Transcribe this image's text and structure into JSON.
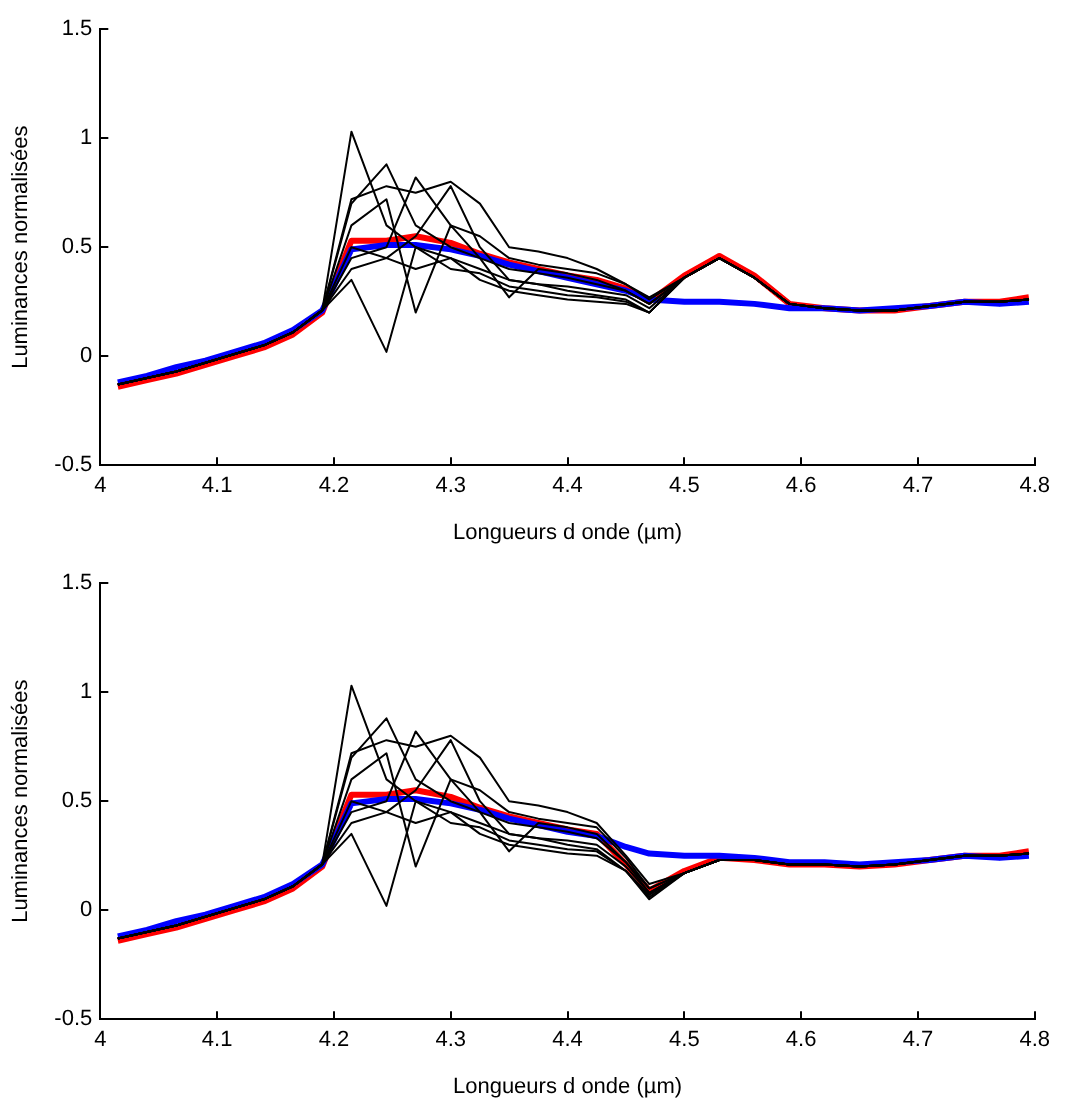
{
  "chart_data": [
    {
      "type": "line",
      "xlabel": "Longueurs d onde (µm)",
      "ylabel": "Luminances normalisées",
      "xlim": [
        4,
        4.8
      ],
      "xticks": [
        4,
        4.1,
        4.2,
        4.3,
        4.4,
        4.5,
        4.6,
        4.7,
        4.8
      ],
      "ylim": [
        -0.5,
        1.5
      ],
      "yticks": [
        -0.5,
        0,
        0.5,
        1,
        1.5
      ],
      "grid": false,
      "legend": false,
      "marker": "none",
      "line_style": "solid",
      "x": [
        4.015,
        4.04,
        4.065,
        4.09,
        4.115,
        4.14,
        4.165,
        4.19,
        4.215,
        4.245,
        4.27,
        4.3,
        4.325,
        4.35,
        4.375,
        4.4,
        4.425,
        4.45,
        4.47,
        4.5,
        4.53,
        4.56,
        4.59,
        4.62,
        4.65,
        4.68,
        4.71,
        4.74,
        4.77,
        4.795
      ],
      "series": [
        {
          "color": "#000000",
          "values": [
            -0.13,
            -0.1,
            -0.07,
            -0.03,
            0.01,
            0.05,
            0.11,
            0.21,
            1.03,
            0.6,
            0.5,
            0.45,
            0.4,
            0.35,
            0.33,
            0.32,
            0.3,
            0.28,
            0.22,
            0.36,
            0.45,
            0.36,
            0.24,
            0.22,
            0.21,
            0.21,
            0.23,
            0.25,
            0.25,
            0.26
          ]
        },
        {
          "color": "#000000",
          "values": [
            -0.13,
            -0.1,
            -0.07,
            -0.03,
            0.01,
            0.05,
            0.11,
            0.21,
            0.35,
            0.02,
            0.5,
            0.4,
            0.38,
            0.32,
            0.3,
            0.28,
            0.27,
            0.25,
            0.2,
            0.36,
            0.45,
            0.36,
            0.24,
            0.22,
            0.21,
            0.21,
            0.23,
            0.25,
            0.25,
            0.26
          ]
        },
        {
          "color": "#000000",
          "values": [
            -0.13,
            -0.1,
            -0.07,
            -0.03,
            0.01,
            0.05,
            0.11,
            0.21,
            0.7,
            0.88,
            0.6,
            0.5,
            0.45,
            0.4,
            0.38,
            0.36,
            0.33,
            0.3,
            0.24,
            0.36,
            0.45,
            0.36,
            0.24,
            0.22,
            0.21,
            0.21,
            0.23,
            0.25,
            0.25,
            0.26
          ]
        },
        {
          "color": "#000000",
          "values": [
            -0.13,
            -0.1,
            -0.07,
            -0.03,
            0.01,
            0.05,
            0.11,
            0.21,
            0.72,
            0.78,
            0.75,
            0.8,
            0.7,
            0.5,
            0.48,
            0.45,
            0.4,
            0.33,
            0.26,
            0.36,
            0.45,
            0.36,
            0.24,
            0.22,
            0.21,
            0.21,
            0.23,
            0.25,
            0.25,
            0.26
          ]
        },
        {
          "color": "#000000",
          "values": [
            -0.13,
            -0.1,
            -0.07,
            -0.03,
            0.01,
            0.05,
            0.11,
            0.21,
            0.45,
            0.5,
            0.82,
            0.6,
            0.55,
            0.45,
            0.42,
            0.4,
            0.38,
            0.33,
            0.27,
            0.36,
            0.45,
            0.36,
            0.24,
            0.22,
            0.21,
            0.21,
            0.23,
            0.25,
            0.25,
            0.26
          ]
        },
        {
          "color": "#000000",
          "values": [
            -0.13,
            -0.1,
            -0.07,
            -0.03,
            0.01,
            0.05,
            0.11,
            0.21,
            0.6,
            0.72,
            0.2,
            0.6,
            0.45,
            0.27,
            0.4,
            0.38,
            0.35,
            0.3,
            0.24,
            0.36,
            0.45,
            0.36,
            0.24,
            0.22,
            0.21,
            0.21,
            0.23,
            0.25,
            0.25,
            0.26
          ]
        },
        {
          "color": "#000000",
          "values": [
            -0.13,
            -0.1,
            -0.07,
            -0.03,
            0.01,
            0.05,
            0.11,
            0.21,
            0.4,
            0.45,
            0.55,
            0.78,
            0.5,
            0.35,
            0.33,
            0.3,
            0.28,
            0.26,
            0.2,
            0.36,
            0.45,
            0.36,
            0.24,
            0.22,
            0.21,
            0.21,
            0.23,
            0.25,
            0.25,
            0.26
          ]
        },
        {
          "color": "#000000",
          "values": [
            -0.13,
            -0.1,
            -0.07,
            -0.03,
            0.01,
            0.05,
            0.11,
            0.21,
            0.5,
            0.45,
            0.4,
            0.45,
            0.35,
            0.3,
            0.28,
            0.26,
            0.25,
            0.24,
            0.2,
            0.36,
            0.45,
            0.36,
            0.24,
            0.22,
            0.21,
            0.21,
            0.23,
            0.25,
            0.25,
            0.26
          ]
        },
        {
          "color": "#0000ff",
          "values": [
            -0.12,
            -0.09,
            -0.05,
            -0.02,
            0.02,
            0.06,
            0.12,
            0.21,
            0.49,
            0.51,
            0.51,
            0.49,
            0.46,
            0.42,
            0.39,
            0.36,
            0.33,
            0.3,
            0.26,
            0.25,
            0.25,
            0.24,
            0.22,
            0.22,
            0.21,
            0.22,
            0.23,
            0.25,
            0.24,
            0.25
          ]
        },
        {
          "color": "#ff0000",
          "values": [
            -0.14,
            -0.11,
            -0.08,
            -0.04,
            0.0,
            0.04,
            0.1,
            0.2,
            0.53,
            0.53,
            0.55,
            0.52,
            0.47,
            0.43,
            0.4,
            0.37,
            0.35,
            0.31,
            0.25,
            0.37,
            0.46,
            0.37,
            0.24,
            0.22,
            0.21,
            0.21,
            0.23,
            0.25,
            0.25,
            0.27
          ]
        }
      ]
    },
    {
      "type": "line",
      "xlabel": "Longueurs d onde (µm)",
      "ylabel": "Luminances normalisées",
      "xlim": [
        4,
        4.8
      ],
      "xticks": [
        4,
        4.1,
        4.2,
        4.3,
        4.4,
        4.5,
        4.6,
        4.7,
        4.8
      ],
      "ylim": [
        -0.5,
        1.5
      ],
      "yticks": [
        -0.5,
        0,
        0.5,
        1,
        1.5
      ],
      "grid": false,
      "legend": false,
      "marker": "none",
      "line_style": "solid",
      "x": [
        4.015,
        4.04,
        4.065,
        4.09,
        4.115,
        4.14,
        4.165,
        4.19,
        4.215,
        4.245,
        4.27,
        4.3,
        4.325,
        4.35,
        4.375,
        4.4,
        4.425,
        4.45,
        4.47,
        4.5,
        4.53,
        4.56,
        4.59,
        4.62,
        4.65,
        4.68,
        4.71,
        4.74,
        4.77,
        4.795
      ],
      "series": [
        {
          "color": "#000000",
          "values": [
            -0.13,
            -0.1,
            -0.07,
            -0.03,
            0.01,
            0.05,
            0.11,
            0.21,
            1.03,
            0.6,
            0.5,
            0.45,
            0.4,
            0.35,
            0.33,
            0.32,
            0.3,
            0.2,
            0.08,
            0.17,
            0.23,
            0.23,
            0.21,
            0.21,
            0.2,
            0.21,
            0.23,
            0.25,
            0.25,
            0.26
          ]
        },
        {
          "color": "#000000",
          "values": [
            -0.13,
            -0.1,
            -0.07,
            -0.03,
            0.01,
            0.05,
            0.11,
            0.21,
            0.35,
            0.02,
            0.5,
            0.4,
            0.38,
            0.32,
            0.3,
            0.28,
            0.27,
            0.18,
            0.05,
            0.17,
            0.23,
            0.23,
            0.21,
            0.21,
            0.2,
            0.21,
            0.23,
            0.25,
            0.25,
            0.26
          ]
        },
        {
          "color": "#000000",
          "values": [
            -0.13,
            -0.1,
            -0.07,
            -0.03,
            0.01,
            0.05,
            0.11,
            0.21,
            0.7,
            0.88,
            0.6,
            0.5,
            0.45,
            0.4,
            0.38,
            0.36,
            0.33,
            0.22,
            0.1,
            0.17,
            0.23,
            0.23,
            0.21,
            0.21,
            0.2,
            0.21,
            0.23,
            0.25,
            0.25,
            0.26
          ]
        },
        {
          "color": "#000000",
          "values": [
            -0.13,
            -0.1,
            -0.07,
            -0.03,
            0.01,
            0.05,
            0.11,
            0.21,
            0.72,
            0.78,
            0.75,
            0.8,
            0.7,
            0.5,
            0.48,
            0.45,
            0.4,
            0.25,
            0.12,
            0.17,
            0.23,
            0.23,
            0.21,
            0.21,
            0.2,
            0.21,
            0.23,
            0.25,
            0.25,
            0.26
          ]
        },
        {
          "color": "#000000",
          "values": [
            -0.13,
            -0.1,
            -0.07,
            -0.03,
            0.01,
            0.05,
            0.11,
            0.21,
            0.45,
            0.5,
            0.82,
            0.6,
            0.55,
            0.45,
            0.42,
            0.4,
            0.38,
            0.24,
            0.1,
            0.17,
            0.23,
            0.23,
            0.21,
            0.21,
            0.2,
            0.21,
            0.23,
            0.25,
            0.25,
            0.26
          ]
        },
        {
          "color": "#000000",
          "values": [
            -0.13,
            -0.1,
            -0.07,
            -0.03,
            0.01,
            0.05,
            0.11,
            0.21,
            0.6,
            0.72,
            0.2,
            0.6,
            0.45,
            0.27,
            0.4,
            0.38,
            0.35,
            0.22,
            0.08,
            0.17,
            0.23,
            0.23,
            0.21,
            0.21,
            0.2,
            0.21,
            0.23,
            0.25,
            0.25,
            0.26
          ]
        },
        {
          "color": "#000000",
          "values": [
            -0.13,
            -0.1,
            -0.07,
            -0.03,
            0.01,
            0.05,
            0.11,
            0.21,
            0.4,
            0.45,
            0.55,
            0.78,
            0.5,
            0.35,
            0.33,
            0.3,
            0.28,
            0.18,
            0.06,
            0.17,
            0.23,
            0.23,
            0.21,
            0.21,
            0.2,
            0.21,
            0.23,
            0.25,
            0.25,
            0.26
          ]
        },
        {
          "color": "#000000",
          "values": [
            -0.13,
            -0.1,
            -0.07,
            -0.03,
            0.01,
            0.05,
            0.11,
            0.21,
            0.5,
            0.45,
            0.4,
            0.45,
            0.35,
            0.3,
            0.28,
            0.26,
            0.25,
            0.18,
            0.07,
            0.17,
            0.23,
            0.23,
            0.21,
            0.21,
            0.2,
            0.21,
            0.23,
            0.25,
            0.25,
            0.26
          ]
        },
        {
          "color": "#0000ff",
          "values": [
            -0.12,
            -0.09,
            -0.05,
            -0.02,
            0.02,
            0.06,
            0.12,
            0.21,
            0.49,
            0.51,
            0.51,
            0.49,
            0.46,
            0.42,
            0.39,
            0.36,
            0.34,
            0.29,
            0.26,
            0.25,
            0.25,
            0.24,
            0.22,
            0.22,
            0.21,
            0.22,
            0.23,
            0.25,
            0.24,
            0.25
          ]
        },
        {
          "color": "#ff0000",
          "values": [
            -0.14,
            -0.11,
            -0.08,
            -0.04,
            0.0,
            0.04,
            0.1,
            0.2,
            0.53,
            0.53,
            0.55,
            0.52,
            0.47,
            0.43,
            0.4,
            0.37,
            0.35,
            0.21,
            0.09,
            0.18,
            0.24,
            0.23,
            0.21,
            0.21,
            0.2,
            0.21,
            0.23,
            0.25,
            0.25,
            0.27
          ]
        }
      ]
    }
  ]
}
